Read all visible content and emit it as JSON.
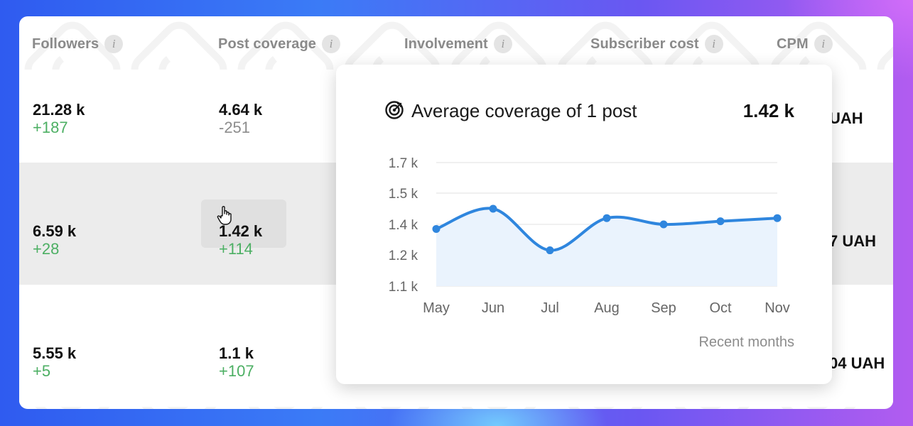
{
  "columns": [
    {
      "label": "Followers",
      "icon": "info-icon"
    },
    {
      "label": "Post coverage",
      "icon": "info-icon"
    },
    {
      "label": "Involvement",
      "icon": "info-icon"
    },
    {
      "label": "Subscriber cost",
      "icon": "info-icon"
    },
    {
      "label": "CPM",
      "icon": "info-icon"
    }
  ],
  "info_glyph": "i",
  "rows": [
    {
      "followers": "21.28 k",
      "followers_delta": "+187",
      "coverage": "4.64 k",
      "coverage_delta": "-251",
      "cpm": "UAH"
    },
    {
      "followers": "6.59 k",
      "followers_delta": "+28",
      "coverage": "1.42 k",
      "coverage_delta": "+114",
      "cpm": "7 UAH"
    },
    {
      "followers": "5.55 k",
      "followers_delta": "+5",
      "coverage": "1.1 k",
      "coverage_delta": "+107",
      "cpm": "04 UAH"
    }
  ],
  "tooltip": {
    "icon": "target-icon",
    "title": "Average coverage of 1 post",
    "value": "1.42 k",
    "footer": "Recent months"
  },
  "colors": {
    "positive": "#4caf63",
    "line": "#2f86de",
    "area": "#eaf3fd"
  },
  "chart_data": {
    "type": "line",
    "categories": [
      "May",
      "Jun",
      "Jul",
      "Aug",
      "Sep",
      "Oct",
      "Nov"
    ],
    "values": [
      1.37,
      1.45,
      1.23,
      1.42,
      1.4,
      1.41,
      1.42
    ],
    "ytick_values": [
      1.1,
      1.2,
      1.4,
      1.5,
      1.7
    ],
    "ytick_labels": [
      "1.1 k",
      "1.2 k",
      "1.4 k",
      "1.5 k",
      "1.7 k"
    ],
    "grid": true,
    "smooth": true,
    "fill": true
  }
}
